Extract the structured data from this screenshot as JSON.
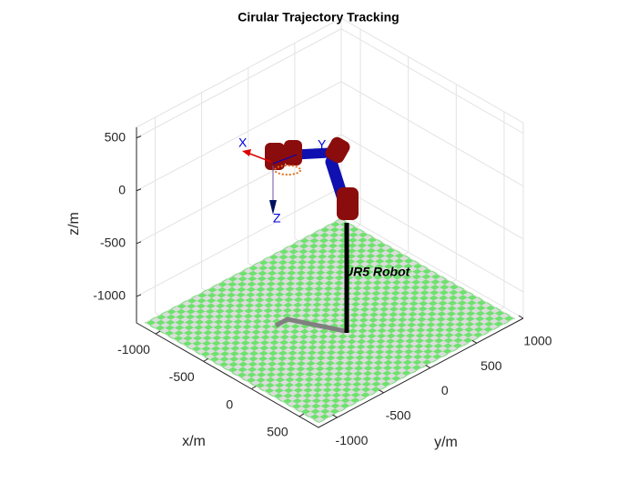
{
  "chart_data": {
    "type": "scene3d",
    "title": "Cirular Trajectory Tracking",
    "xlabel": "x/m",
    "ylabel": "y/m",
    "zlabel": "z/m",
    "xlim": [
      -1200,
      700
    ],
    "xticks": [
      -1000,
      -500,
      0,
      500
    ],
    "ylim": [
      -1200,
      1000
    ],
    "yticks": [
      -1000,
      -500,
      0,
      500,
      1000
    ],
    "zlim": [
      -1250,
      600
    ],
    "zticks": [
      -1000,
      -500,
      0,
      500
    ],
    "grid": true,
    "floor_colors": [
      "#dcdcdc",
      "#6ee26e"
    ],
    "annotation": "UR5 Robot",
    "frame_labels": [
      "X",
      "Y",
      "Z"
    ]
  }
}
